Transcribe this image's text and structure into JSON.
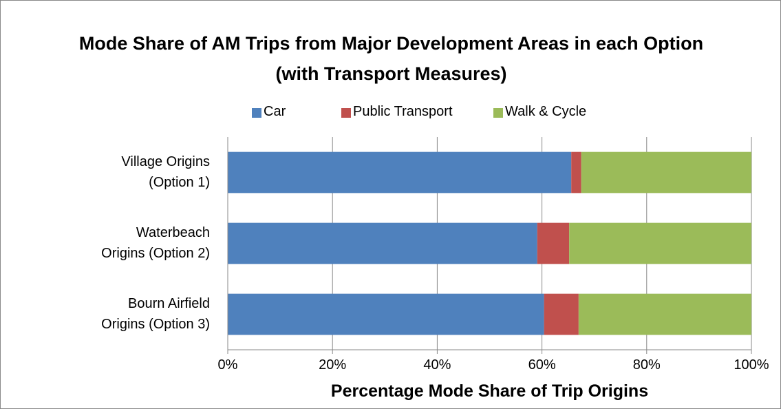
{
  "chart_data": {
    "type": "stacked_barh",
    "title": "Mode Share of AM Trips from Major Development Areas in each Option (with Transport Measures)",
    "categories": [
      "Village Origins\n(Option 1)",
      "Waterbeach\nOrigins (Option 2)",
      "Bourn Airfield\nOrigins (Option 3)"
    ],
    "series": [
      {
        "name": "Car",
        "color": "#4f81bd",
        "values": [
          65.6,
          59.1,
          60.4
        ]
      },
      {
        "name": "Public Transport",
        "color": "#c0504d",
        "values": [
          1.9,
          6.1,
          6.6
        ]
      },
      {
        "name": "Walk & Cycle",
        "color": "#9bbb59",
        "values": [
          32.5,
          34.8,
          33.0
        ]
      }
    ],
    "xlabel": "Percentage Mode Share of Trip Origins",
    "xlim": [
      0,
      100
    ],
    "xticks": [
      {
        "value": 0,
        "label": "0%"
      },
      {
        "value": 20,
        "label": "20%"
      },
      {
        "value": 40,
        "label": "40%"
      },
      {
        "value": 60,
        "label": "60%"
      },
      {
        "value": 80,
        "label": "80%"
      },
      {
        "value": 100,
        "label": "100%"
      }
    ],
    "grid": true,
    "legend": "top"
  }
}
